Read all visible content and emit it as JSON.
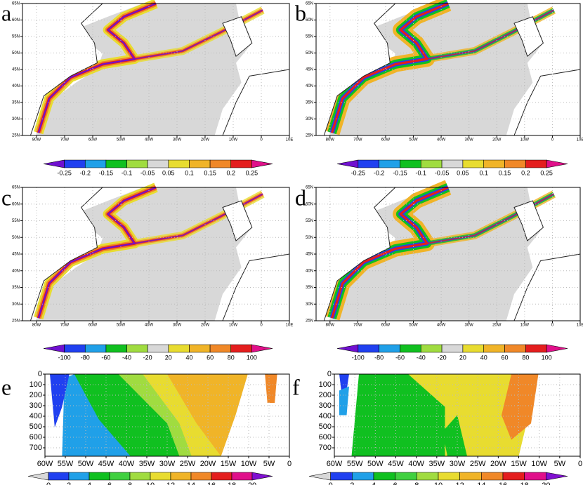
{
  "panels": [
    {
      "letter": "a",
      "kind": "map",
      "xlim": [
        -85,
        10
      ],
      "ylim": [
        25,
        65
      ],
      "xticks": [
        {
          "value": -80,
          "label": "80W"
        },
        {
          "value": -70,
          "label": "70W"
        },
        {
          "value": -60,
          "label": "60W"
        },
        {
          "value": -50,
          "label": "50W"
        },
        {
          "value": -40,
          "label": "40W"
        },
        {
          "value": -30,
          "label": "30W"
        },
        {
          "value": -20,
          "label": "20W"
        },
        {
          "value": -10,
          "label": "10W"
        },
        0,
        {
          "value": 10,
          "label": "10E"
        }
      ],
      "yticks": [
        {
          "value": 25,
          "label": "25N"
        },
        {
          "value": 30,
          "label": "30N"
        },
        {
          "value": 35,
          "label": "35N"
        },
        {
          "value": 40,
          "label": "40N"
        },
        {
          "value": 45,
          "label": "45N"
        },
        {
          "value": 50,
          "label": "50N"
        },
        {
          "value": 55,
          "label": "55N"
        },
        {
          "value": 60,
          "label": "60N"
        },
        {
          "value": 65,
          "label": "65N"
        }
      ],
      "colorbar": {
        "colors": [
          "#7010d0",
          "#2040f0",
          "#20a0e8",
          "#10c020",
          "#a0dc40",
          "#d8d8d8",
          "#e8dc30",
          "#f0b428",
          "#f08828",
          "#e41e1e",
          "#e0108a"
        ],
        "labels": [
          -0.25,
          -0.2,
          -0.15,
          -0.1,
          -0.05,
          0.05,
          0.1,
          0.15,
          0.2,
          0.25
        ]
      }
    },
    {
      "letter": "b",
      "kind": "map",
      "xlim": [
        -85,
        10
      ],
      "ylim": [
        25,
        65
      ],
      "xticks": [
        {
          "value": -80,
          "label": "80W"
        },
        {
          "value": -70,
          "label": "70W"
        },
        {
          "value": -60,
          "label": "60W"
        },
        {
          "value": -50,
          "label": "50W"
        },
        {
          "value": -40,
          "label": "40W"
        },
        {
          "value": -30,
          "label": "30W"
        },
        {
          "value": -20,
          "label": "20W"
        },
        {
          "value": -10,
          "label": "10W"
        },
        0,
        {
          "value": 10,
          "label": "10E"
        }
      ],
      "yticks": [
        {
          "value": 25,
          "label": "25N"
        },
        {
          "value": 30,
          "label": "30N"
        },
        {
          "value": 35,
          "label": "35N"
        },
        {
          "value": 40,
          "label": "40N"
        },
        {
          "value": 45,
          "label": "45N"
        },
        {
          "value": 50,
          "label": "50N"
        },
        {
          "value": 55,
          "label": "55N"
        },
        {
          "value": 60,
          "label": "60N"
        },
        {
          "value": 65,
          "label": "65N"
        }
      ],
      "colorbar": {
        "colors": [
          "#7010d0",
          "#2040f0",
          "#20a0e8",
          "#10c020",
          "#a0dc40",
          "#d8d8d8",
          "#e8dc30",
          "#f0b428",
          "#f08828",
          "#e41e1e",
          "#e0108a"
        ],
        "labels": [
          -0.25,
          -0.2,
          -0.15,
          -0.1,
          -0.05,
          0.05,
          0.1,
          0.15,
          0.2,
          0.25
        ]
      }
    },
    {
      "letter": "c",
      "kind": "map",
      "xlim": [
        -85,
        10
      ],
      "ylim": [
        25,
        65
      ],
      "xticks": [
        {
          "value": -80,
          "label": "80W"
        },
        {
          "value": -70,
          "label": "70W"
        },
        {
          "value": -60,
          "label": "60W"
        },
        {
          "value": -50,
          "label": "50W"
        },
        {
          "value": -40,
          "label": "40W"
        },
        {
          "value": -30,
          "label": "30W"
        },
        {
          "value": -20,
          "label": "20W"
        },
        {
          "value": -10,
          "label": "10W"
        },
        0,
        {
          "value": 10,
          "label": "10E"
        }
      ],
      "yticks": [
        {
          "value": 25,
          "label": "25N"
        },
        {
          "value": 30,
          "label": "30N"
        },
        {
          "value": 35,
          "label": "35N"
        },
        {
          "value": 40,
          "label": "40N"
        },
        {
          "value": 45,
          "label": "45N"
        },
        {
          "value": 50,
          "label": "50N"
        },
        {
          "value": 55,
          "label": "55N"
        },
        {
          "value": 60,
          "label": "60N"
        },
        {
          "value": 65,
          "label": "65N"
        }
      ],
      "colorbar": {
        "colors": [
          "#7010d0",
          "#2040f0",
          "#20a0e8",
          "#10c020",
          "#a0dc40",
          "#d8d8d8",
          "#e8dc30",
          "#f0b428",
          "#f08828",
          "#e41e1e",
          "#e0108a"
        ],
        "labels": [
          -100,
          -80,
          -60,
          -40,
          -20,
          20,
          40,
          60,
          80,
          100
        ]
      }
    },
    {
      "letter": "d",
      "kind": "map",
      "xlim": [
        -85,
        10
      ],
      "ylim": [
        25,
        65
      ],
      "xticks": [
        {
          "value": -80,
          "label": "80W"
        },
        {
          "value": -70,
          "label": "70W"
        },
        {
          "value": -60,
          "label": "60W"
        },
        {
          "value": -50,
          "label": "50W"
        },
        {
          "value": -40,
          "label": "40W"
        },
        {
          "value": -30,
          "label": "30W"
        },
        {
          "value": -20,
          "label": "20W"
        },
        {
          "value": -10,
          "label": "10W"
        },
        0,
        {
          "value": 10,
          "label": "10E"
        }
      ],
      "yticks": [
        {
          "value": 25,
          "label": "25N"
        },
        {
          "value": 30,
          "label": "30N"
        },
        {
          "value": 35,
          "label": "35N"
        },
        {
          "value": 40,
          "label": "40N"
        },
        {
          "value": 45,
          "label": "45N"
        },
        {
          "value": 50,
          "label": "50N"
        },
        {
          "value": 55,
          "label": "55N"
        },
        {
          "value": 60,
          "label": "60N"
        },
        {
          "value": 65,
          "label": "65N"
        }
      ],
      "colorbar": {
        "colors": [
          "#7010d0",
          "#2040f0",
          "#20a0e8",
          "#10c020",
          "#a0dc40",
          "#d8d8d8",
          "#e8dc30",
          "#f0b428",
          "#f08828",
          "#e41e1e",
          "#e0108a"
        ],
        "labels": [
          -100,
          -80,
          -60,
          -40,
          -20,
          20,
          40,
          60,
          80,
          100
        ]
      }
    },
    {
      "letter": "e",
      "kind": "section",
      "xlim": [
        -60,
        0
      ],
      "ylim": [
        780,
        0
      ],
      "xticks": [
        {
          "value": -60,
          "label": "60W"
        },
        {
          "value": -55,
          "label": "55W"
        },
        {
          "value": -50,
          "label": "50W"
        },
        {
          "value": -45,
          "label": "45W"
        },
        {
          "value": -40,
          "label": "40W"
        },
        {
          "value": -35,
          "label": "35W"
        },
        {
          "value": -30,
          "label": "30W"
        },
        {
          "value": -25,
          "label": "25W"
        },
        {
          "value": -20,
          "label": "20W"
        },
        {
          "value": -15,
          "label": "15W"
        },
        {
          "value": -10,
          "label": "10W"
        },
        {
          "value": -5,
          "label": "5W"
        },
        0
      ],
      "yticks": [
        0,
        100,
        200,
        300,
        400,
        500,
        600,
        700
      ],
      "colorbar": {
        "colors": [
          "#d8d8d8",
          "#2040f0",
          "#20a0e8",
          "#10c020",
          "#40d040",
          "#a0dc40",
          "#e8dc30",
          "#f0b428",
          "#f08828",
          "#e41e1e",
          "#e0108a",
          "#8010d0"
        ],
        "labels": [
          0,
          2,
          4,
          6,
          8,
          10,
          12,
          14,
          16,
          18,
          20
        ]
      }
    },
    {
      "letter": "f",
      "kind": "section",
      "xlim": [
        -60,
        0
      ],
      "ylim": [
        780,
        0
      ],
      "xticks": [
        {
          "value": -60,
          "label": "60W"
        },
        {
          "value": -55,
          "label": "55W"
        },
        {
          "value": -50,
          "label": "50W"
        },
        {
          "value": -45,
          "label": "45W"
        },
        {
          "value": -40,
          "label": "40W"
        },
        {
          "value": -35,
          "label": "35W"
        },
        {
          "value": -30,
          "label": "30W"
        },
        {
          "value": -25,
          "label": "25W"
        },
        {
          "value": -20,
          "label": "20W"
        },
        {
          "value": -15,
          "label": "15W"
        },
        {
          "value": -10,
          "label": "10W"
        },
        {
          "value": -5,
          "label": "5W"
        },
        0
      ],
      "yticks": [
        0,
        100,
        200,
        300,
        400,
        500,
        600,
        700
      ],
      "colorbar": {
        "colors": [
          "#d8d8d8",
          "#2040f0",
          "#20a0e8",
          "#10c020",
          "#40d040",
          "#a0dc40",
          "#e8dc30",
          "#f0b428",
          "#f08828",
          "#e41e1e",
          "#e0108a",
          "#8010d0"
        ],
        "labels": [
          0,
          2,
          4,
          6,
          8,
          10,
          12,
          14,
          16,
          18,
          20
        ]
      }
    }
  ]
}
